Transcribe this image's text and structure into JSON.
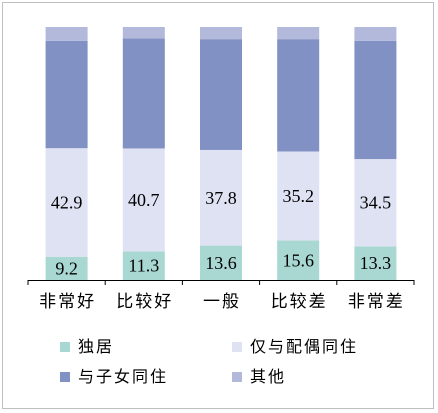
{
  "chart_data": {
    "type": "bar",
    "stacked": true,
    "normalized": true,
    "categories": [
      "非常好",
      "比较好",
      "一般",
      "比较差",
      "非常差"
    ],
    "ylim": [
      0,
      100
    ],
    "grid": false,
    "legend_position": "bottom",
    "series": [
      {
        "name": "独居",
        "color": "#a9d8d3",
        "values": [
          9.2,
          11.3,
          13.6,
          15.6,
          13.3
        ]
      },
      {
        "name": "仅与配偶同住",
        "color": "#dfe2f3",
        "values": [
          42.9,
          40.7,
          37.8,
          35.2,
          34.5
        ]
      },
      {
        "name": "与子女同住",
        "color": "#8291c3",
        "values": [
          42.4,
          43.5,
          43.8,
          44.4,
          46.7
        ]
      },
      {
        "name": "其他",
        "color": "#b2b9db",
        "values": [
          5.5,
          4.5,
          4.8,
          4.8,
          5.5
        ]
      }
    ],
    "data_labels": {
      "独居": [
        "9.2",
        "11.3",
        "13.6",
        "15.6",
        "13.3"
      ],
      "仅与配偶同住": [
        "42.9",
        "40.7",
        "37.8",
        "35.2",
        "34.5"
      ]
    }
  }
}
